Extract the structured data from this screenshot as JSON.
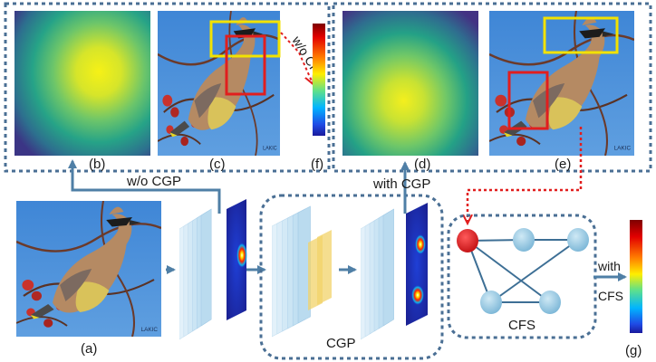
{
  "labels": {
    "a": "(a)",
    "b": "(b)",
    "c": "(c)",
    "d": "(d)",
    "e": "(e)",
    "f": "(f)",
    "g": "(g)"
  },
  "arrows": {
    "without_cgp": "w/o CGP",
    "with_cgp": "with CGP",
    "without_cfs": "w/o CFS",
    "with_word": "with",
    "cfs_word": "CFS"
  },
  "modules": {
    "cgp": "CGP",
    "cfs": "CFS"
  },
  "watermark": "LAKIC",
  "colors": {
    "dashed_box": "#4a6f94",
    "arrow_blue": "#4f7fa6",
    "highlight_yellow": "#f2e200",
    "highlight_red": "#e11e1e",
    "graph_node": "#8cc3de",
    "selected_node": "#d4191c",
    "graph_edge": "#3d6f95"
  }
}
